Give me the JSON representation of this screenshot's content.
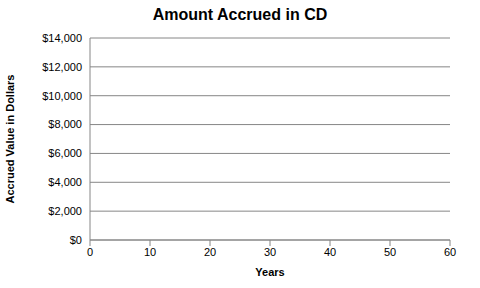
{
  "chart_data": {
    "type": "line",
    "title": "Amount Accrued in CD",
    "x_label": "Years",
    "y_label": "Accrued Value in Dollars",
    "x": [],
    "values": [],
    "xlim": [
      0,
      60
    ],
    "xticks": [
      0,
      10,
      20,
      30,
      40,
      50,
      60
    ],
    "ylim": [
      0,
      14000
    ],
    "yticks": [
      {
        "value": 0,
        "label": "$0"
      },
      {
        "value": 2000,
        "label": "$2,000"
      },
      {
        "value": 4000,
        "label": "$4,000"
      },
      {
        "value": 6000,
        "label": "$6,000"
      },
      {
        "value": 8000,
        "label": "$8,000"
      },
      {
        "value": 10000,
        "label": "$10,000"
      },
      {
        "value": 12000,
        "label": "$12,000"
      },
      {
        "value": 14000,
        "label": "$14,000"
      }
    ],
    "grid": true
  }
}
